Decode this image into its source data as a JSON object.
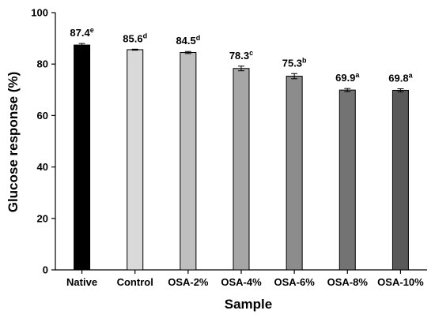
{
  "chart_data": {
    "type": "bar",
    "categories": [
      "Native",
      "Control",
      "OSA-2%",
      "OSA-4%",
      "OSA-6%",
      "OSA-8%",
      "OSA-10%"
    ],
    "values": [
      87.4,
      85.6,
      84.5,
      78.3,
      75.3,
      69.9,
      69.8
    ],
    "errors": [
      0.6,
      0.2,
      0.4,
      0.9,
      1.0,
      0.6,
      0.6
    ],
    "value_labels": [
      "87.4",
      "85.6",
      "84.5",
      "78.3",
      "75.3",
      "69.9",
      "69.8"
    ],
    "significance_letters": [
      "e",
      "d",
      "d",
      "c",
      "b",
      "a",
      "a"
    ],
    "bar_colors": [
      "#000000",
      "#d9d9d9",
      "#bfbfbf",
      "#a6a6a6",
      "#8c8c8c",
      "#737373",
      "#595959"
    ],
    "title": "",
    "xlabel": "Sample",
    "ylabel": "Glucose response (%)",
    "ylim": [
      0,
      100
    ],
    "yticks": [
      0,
      20,
      40,
      60,
      80,
      100
    ],
    "grid": false,
    "legend": "none"
  }
}
